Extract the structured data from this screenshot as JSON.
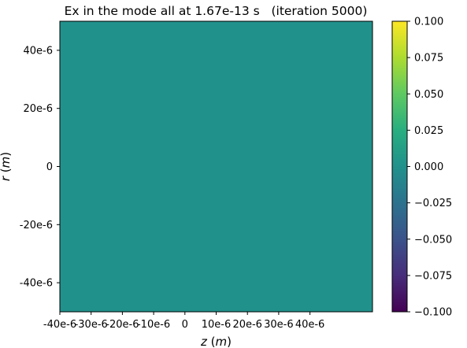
{
  "chart_data": {
    "type": "heatmap",
    "title": "Ex in the mode all at 1.67e-13 s   (iteration 5000)",
    "xlabel": "z (m)",
    "ylabel": "r (m)",
    "xlim": [
      -4e-05,
      6e-05
    ],
    "ylim": [
      -5e-05,
      5e-05
    ],
    "x_ticks": [
      {
        "value": -4e-05,
        "label": "-40e-6"
      },
      {
        "value": -3e-05,
        "label": "-30e-6"
      },
      {
        "value": -2e-05,
        "label": "-20e-6"
      },
      {
        "value": -1e-05,
        "label": "-10e-6"
      },
      {
        "value": 0,
        "label": "0"
      },
      {
        "value": 1e-05,
        "label": "10e-6"
      },
      {
        "value": 2e-05,
        "label": "20e-6"
      },
      {
        "value": 3e-05,
        "label": "30e-6"
      },
      {
        "value": 4e-05,
        "label": "40e-6"
      }
    ],
    "y_ticks": [
      {
        "value": 4e-05,
        "label": "40e-6"
      },
      {
        "value": 2e-05,
        "label": "20e-6"
      },
      {
        "value": 0,
        "label": "0"
      },
      {
        "value": -2e-05,
        "label": "-20e-6"
      },
      {
        "value": -4e-05,
        "label": "-40e-6"
      }
    ],
    "field_value": 0.0,
    "colormap": "viridis",
    "colorbar": {
      "range": [
        -0.1,
        0.1
      ],
      "ticks": [
        {
          "value": 0.1,
          "label": "0.100"
        },
        {
          "value": 0.075,
          "label": "0.075"
        },
        {
          "value": 0.05,
          "label": "0.050"
        },
        {
          "value": 0.025,
          "label": "0.025"
        },
        {
          "value": 0.0,
          "label": "0.000"
        },
        {
          "value": -0.025,
          "label": "−0.025"
        },
        {
          "value": -0.05,
          "label": "−0.050"
        },
        {
          "value": -0.075,
          "label": "−0.075"
        },
        {
          "value": -0.1,
          "label": "−0.100"
        }
      ]
    },
    "grid": false,
    "legend": "none"
  }
}
